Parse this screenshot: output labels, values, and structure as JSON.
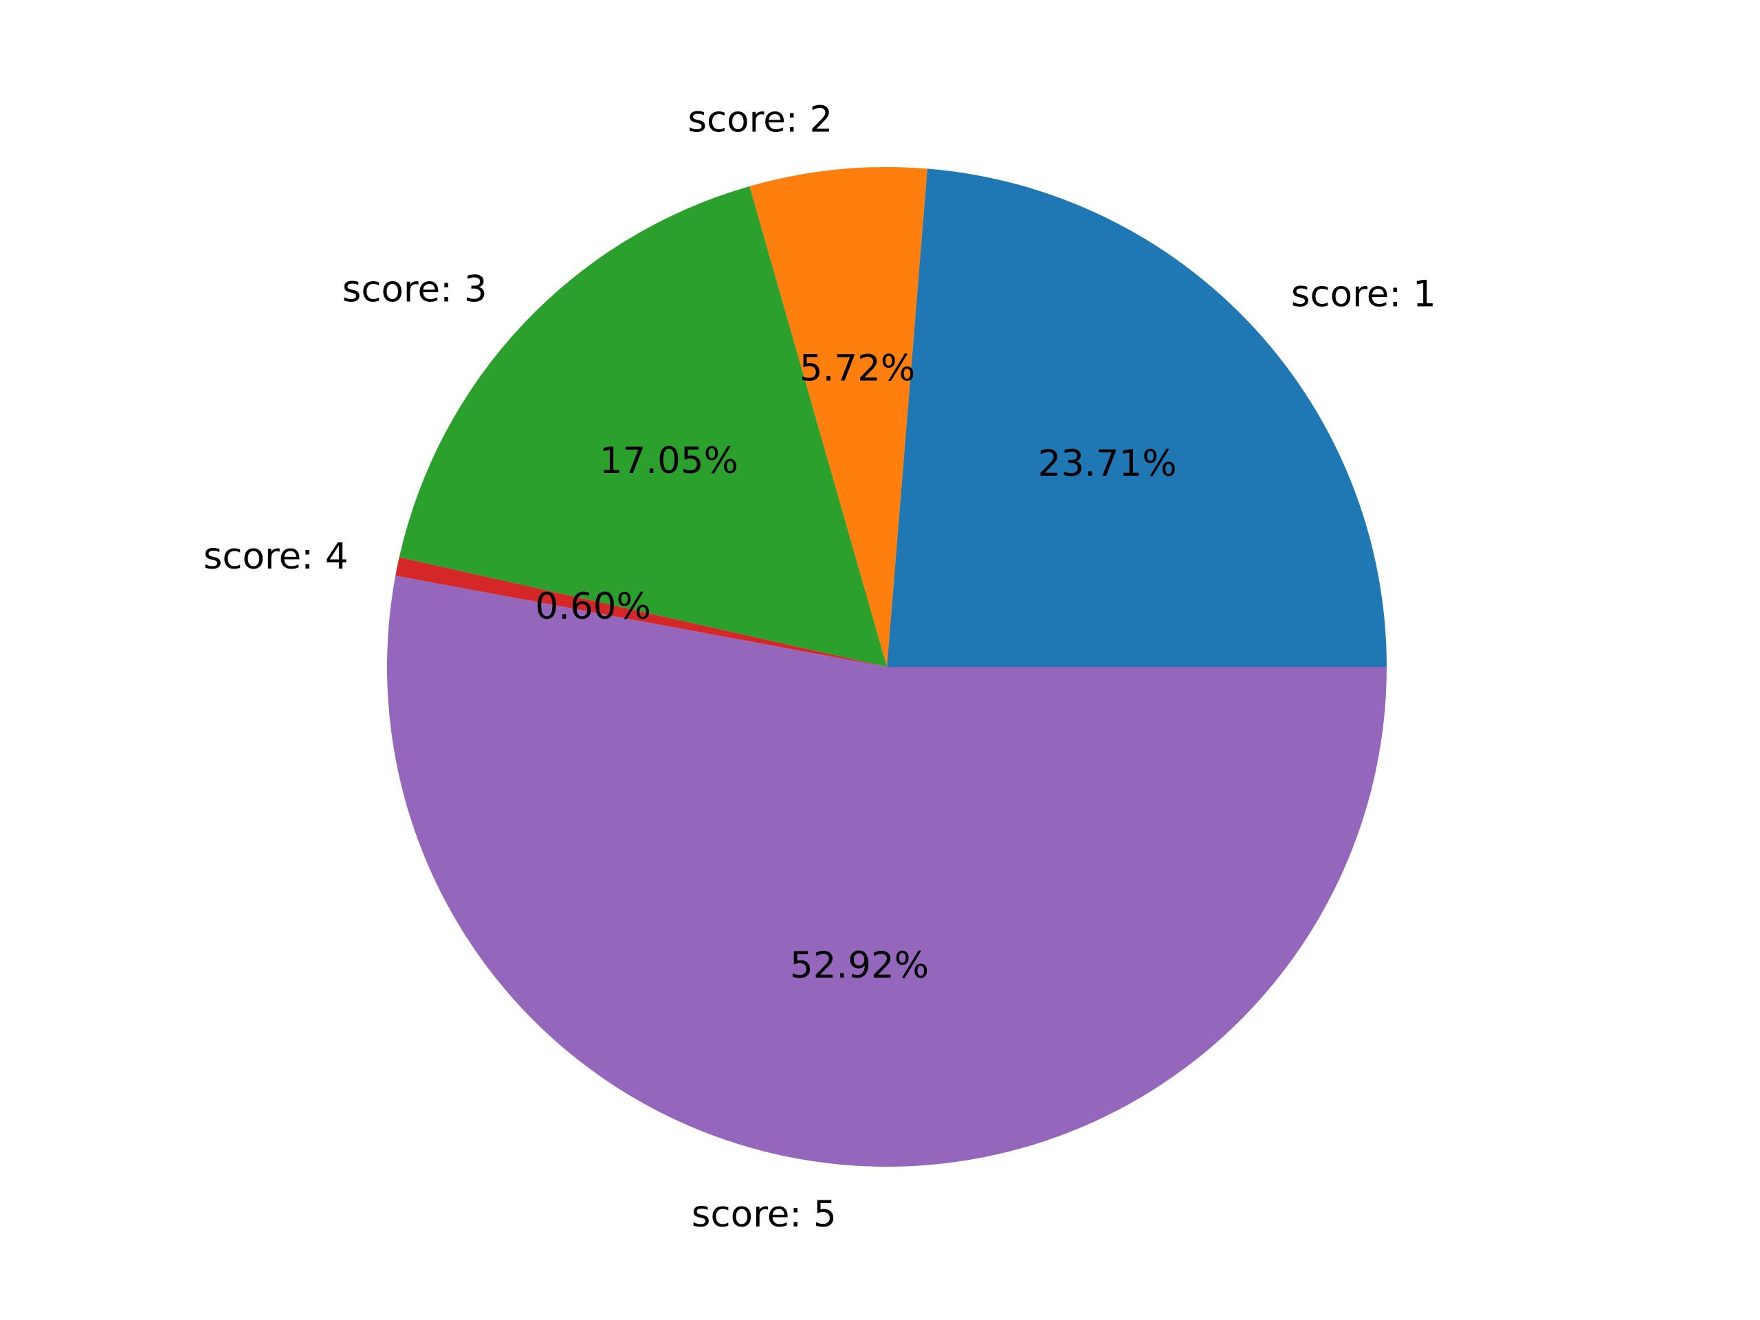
{
  "chart_data": {
    "type": "pie",
    "start_angle_deg": 0,
    "direction": "counterclockwise",
    "slices": [
      {
        "label": "score: 1",
        "value": 23.71,
        "pct_label": "23.71%",
        "color": "#1f77b4"
      },
      {
        "label": "score: 2",
        "value": 5.72,
        "pct_label": "5.72%",
        "color": "#ff7f0e"
      },
      {
        "label": "score: 3",
        "value": 17.05,
        "pct_label": "17.05%",
        "color": "#2ca02c"
      },
      {
        "label": "score: 4",
        "value": 0.6,
        "pct_label": "0.60%",
        "color": "#d62728"
      },
      {
        "label": "score: 5",
        "value": 52.92,
        "pct_label": "52.92%",
        "color": "#9467bd"
      }
    ]
  }
}
